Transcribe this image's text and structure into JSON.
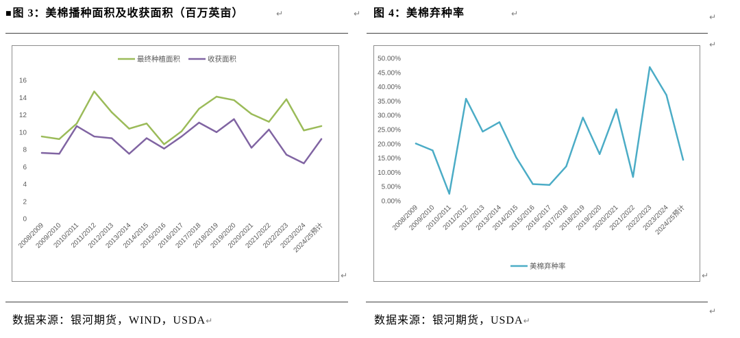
{
  "page": {
    "left": {
      "caption_bullet": "■",
      "source": "数据来源：银河期货，WIND，USDA"
    },
    "right": {
      "source": "数据来源：银河期货，USDA"
    },
    "para_mark": "↵"
  },
  "colors": {
    "rule": "#404040",
    "frame": "#8c8c8c",
    "axis_text": "#595959"
  },
  "chart_data": [
    {
      "type": "line",
      "title": "图 3：美棉播种面积及收获面积（百万英亩）",
      "categories": [
        "2008/2009",
        "2009/2010",
        "2010/2011",
        "2011/2012",
        "2012/2013",
        "2013/2014",
        "2014/2015",
        "2015/2016",
        "2016/2017",
        "2017/2018",
        "2018/2019",
        "2019/2020",
        "2020/2021",
        "2021/2022",
        "2022/2023",
        "2023/2024",
        "2024/25预计"
      ],
      "series": [
        {
          "name": "最终种植面积",
          "color": "#9bbb59",
          "values": [
            9.5,
            9.2,
            11.0,
            14.7,
            12.3,
            10.4,
            11.0,
            8.6,
            10.1,
            12.7,
            14.1,
            13.7,
            12.1,
            11.2,
            13.8,
            10.2,
            10.7
          ]
        },
        {
          "name": "收获面积",
          "color": "#8064a2",
          "values": [
            7.6,
            7.5,
            10.7,
            9.5,
            9.3,
            7.5,
            9.3,
            8.1,
            9.5,
            11.1,
            10.0,
            11.5,
            8.2,
            10.3,
            7.4,
            6.4,
            9.2
          ]
        }
      ],
      "yticks": [
        0,
        2,
        4,
        6,
        8,
        10,
        12,
        14,
        16
      ],
      "ytick_labels": [
        "0",
        "2",
        "4",
        "6",
        "8",
        "10",
        "12",
        "14",
        "16"
      ],
      "ylim": [
        0,
        16
      ],
      "grid": false,
      "legend": "top"
    },
    {
      "type": "line",
      "title": "图 4：美棉弃种率",
      "categories": [
        "2008/2009",
        "2009/2010",
        "2010/2011",
        "2011/2012",
        "2012/2013",
        "2013/2014",
        "2014/2015",
        "2015/2016",
        "2016/2017",
        "2017/2018",
        "2018/2019",
        "2019/2020",
        "2020/2021",
        "2021/2022",
        "2022/2023",
        "2023/2024",
        "2024/25预计"
      ],
      "series": [
        {
          "name": "美棉弃种率",
          "color": "#4bacc6",
          "values": [
            20.1,
            17.7,
            2.5,
            35.8,
            24.3,
            27.6,
            15.3,
            5.9,
            5.6,
            12.1,
            29.2,
            16.4,
            32.1,
            8.4,
            46.9,
            37.1,
            14.4
          ]
        }
      ],
      "yticks": [
        0,
        5,
        10,
        15,
        20,
        25,
        30,
        35,
        40,
        45,
        50
      ],
      "ytick_labels": [
        "0.00%",
        "5.00%",
        "10.00%",
        "15.00%",
        "20.00%",
        "25.00%",
        "30.00%",
        "35.00%",
        "40.00%",
        "45.00%",
        "50.00%"
      ],
      "ylim": [
        0,
        50
      ],
      "grid": false,
      "legend": "bottom"
    }
  ]
}
